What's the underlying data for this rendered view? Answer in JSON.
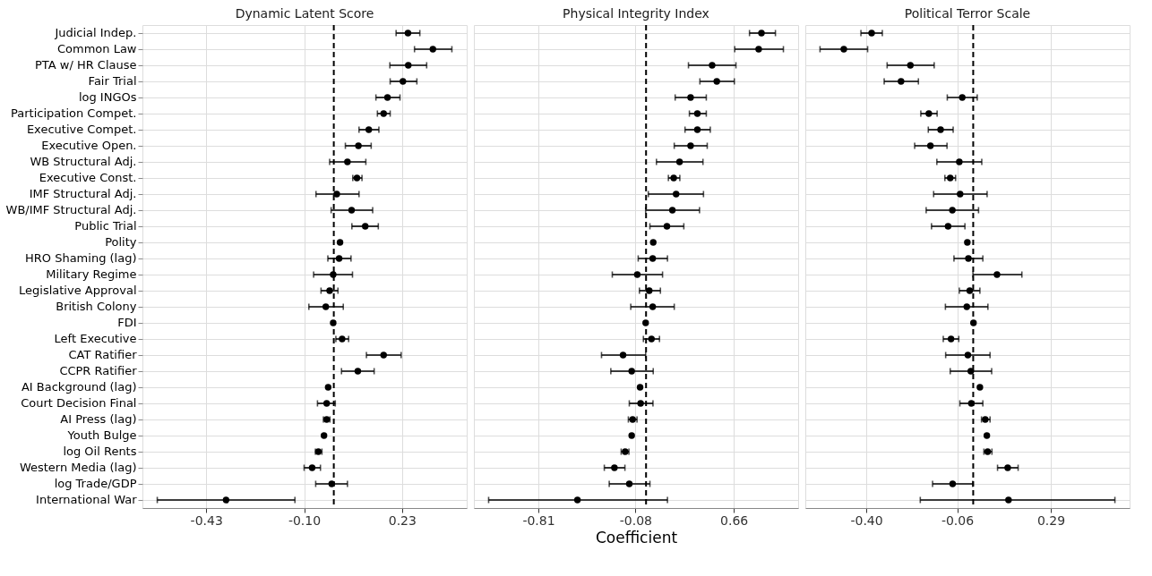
{
  "chart_data": [
    {
      "type": "scatter",
      "orientation": "horizontal",
      "title": "Dynamic Latent Score",
      "marker": "circle",
      "grid": true,
      "categories": [
        "Judicial Indep.",
        "Common Law",
        "PTA w/ HR Clause",
        "Fair Trial",
        "log INGOs",
        "Participation Compet.",
        "Executive Compet.",
        "Executive Open.",
        "WB Structural Adj.",
        "Executive Const.",
        "IMF Structural Adj.",
        "WB/IMF Structural Adj.",
        "Public Trial",
        "Polity",
        "HRO Shaming (lag)",
        "Military Regime",
        "Legislative Approval",
        "British Colony",
        "FDI",
        "Left Executive",
        "CAT Ratifier",
        "CCPR Ratifier",
        "AI Background (lag)",
        "Court Decision Final",
        "AI Press (lag)",
        "Youth Bulge",
        "log Oil Rents",
        "Western Media (lag)",
        "log Trade/GDP",
        "International War"
      ],
      "series": [
        {
          "color": "#000000",
          "values": [
            0.25,
            0.334,
            0.251,
            0.233,
            0.181,
            0.168,
            0.118,
            0.083,
            0.046,
            0.078,
            0.01,
            0.06,
            0.106,
            0.021,
            0.018,
            -0.002,
            -0.014,
            -0.027,
            -0.002,
            0.028,
            0.168,
            0.081,
            -0.019,
            -0.024,
            -0.024,
            -0.033,
            -0.052,
            -0.073,
            -0.007,
            -0.363
          ],
          "errors": [
            [
              0.21,
              0.29
            ],
            [
              0.272,
              0.398
            ],
            [
              0.189,
              0.313
            ],
            [
              0.19,
              0.28
            ],
            [
              0.142,
              0.223
            ],
            [
              0.147,
              0.19
            ],
            [
              0.085,
              0.152
            ],
            [
              0.039,
              0.126
            ],
            [
              -0.014,
              0.108
            ],
            [
              0.064,
              0.095
            ],
            [
              -0.06,
              0.085
            ],
            [
              -0.009,
              0.131
            ],
            [
              0.061,
              0.15
            ],
            null,
            [
              -0.02,
              0.058
            ],
            [
              -0.068,
              0.063
            ],
            [
              -0.043,
              0.014
            ],
            [
              -0.084,
              0.032
            ],
            null,
            [
              0.007,
              0.05
            ],
            [
              0.11,
              0.227
            ],
            [
              0.026,
              0.136
            ],
            null,
            [
              -0.055,
              0.005
            ],
            [
              -0.035,
              -0.013
            ],
            null,
            [
              -0.062,
              -0.04
            ],
            [
              -0.1,
              -0.045
            ],
            [
              -0.061,
              0.046
            ],
            [
              -0.595,
              -0.131
            ]
          ]
        }
      ],
      "xlim": [
        -0.645,
        0.448
      ],
      "xticks": [
        -0.43,
        {
          "value": -0.1,
          "label": "-0.10"
        },
        0.23
      ],
      "ref_lines": [
        {
          "axis": "x",
          "value": 0,
          "color": "#000000",
          "line_style": "dashed"
        }
      ]
    },
    {
      "type": "scatter",
      "orientation": "horizontal",
      "title": "Physical Integrity Index",
      "xlabel": "Coefficient",
      "marker": "circle",
      "grid": true,
      "tick_labels": "x",
      "categories": [
        null,
        null,
        null,
        null,
        null,
        null,
        null,
        null,
        null,
        null,
        null,
        null,
        null,
        null,
        null,
        null,
        null,
        null,
        null,
        null,
        null,
        null,
        null,
        null,
        null,
        null,
        null,
        null,
        null,
        null
      ],
      "series": [
        {
          "color": "#000000",
          "values": [
            0.868,
            0.847,
            0.497,
            0.532,
            0.335,
            0.386,
            0.386,
            0.335,
            0.252,
            0.208,
            0.226,
            0.198,
            0.157,
            0.054,
            0.05,
            -0.066,
            0.024,
            0.05,
            -0.003,
            0.041,
            -0.173,
            -0.108,
            -0.045,
            -0.041,
            -0.101,
            -0.108,
            -0.157,
            -0.238,
            -0.126,
            -0.516
          ],
          "errors": [
            [
              0.778,
              0.973
            ],
            [
              0.667,
              1.033
            ],
            [
              0.319,
              0.676
            ],
            [
              0.405,
              0.664
            ],
            [
              0.219,
              0.453
            ],
            [
              0.326,
              0.453
            ],
            [
              0.293,
              0.483
            ],
            [
              0.212,
              0.46
            ],
            [
              0.078,
              0.428
            ],
            [
              0.168,
              0.254
            ],
            [
              0.017,
              0.432
            ],
            [
              -0.003,
              0.402
            ],
            [
              0.029,
              0.284
            ],
            null,
            [
              -0.059,
              0.161
            ],
            [
              -0.254,
              0.124
            ],
            [
              -0.05,
              0.108
            ],
            [
              -0.115,
              0.212
            ],
            null,
            [
              -0.02,
              0.101
            ],
            [
              -0.335,
              -0.003
            ],
            [
              -0.265,
              0.054
            ],
            null,
            [
              -0.126,
              0.052
            ],
            [
              -0.133,
              -0.068
            ],
            null,
            [
              -0.187,
              -0.129
            ],
            [
              -0.314,
              -0.159
            ],
            [
              -0.277,
              0.029
            ],
            [
              -1.184,
              0.161
            ]
          ]
        }
      ],
      "xlim": [
        -1.295,
        1.144
      ],
      "xticks": [
        -0.81,
        -0.08,
        0.66
      ],
      "ref_lines": [
        {
          "axis": "x",
          "value": 0,
          "color": "#000000",
          "line_style": "dashed"
        }
      ]
    },
    {
      "type": "scatter",
      "orientation": "horizontal",
      "title": "Political Terror Scale",
      "marker": "circle",
      "grid": true,
      "tick_labels": "x",
      "categories": [
        null,
        null,
        null,
        null,
        null,
        null,
        null,
        null,
        null,
        null,
        null,
        null,
        null,
        null,
        null,
        null,
        null,
        null,
        null,
        null,
        null,
        null,
        null,
        null,
        null,
        null,
        null,
        null,
        null,
        null
      ],
      "series": [
        {
          "color": "#000000",
          "values": [
            -0.38,
            -0.484,
            -0.235,
            -0.27,
            -0.041,
            -0.166,
            -0.122,
            -0.16,
            -0.052,
            -0.086,
            -0.049,
            -0.078,
            -0.094,
            -0.022,
            -0.018,
            0.089,
            -0.013,
            -0.024,
            0.001,
            -0.083,
            -0.02,
            -0.009,
            0.025,
            -0.007,
            0.045,
            0.051,
            0.054,
            0.129,
            -0.077,
            0.132
          ],
          "errors": [
            [
              -0.42,
              -0.34
            ],
            [
              -0.573,
              -0.395
            ],
            [
              -0.322,
              -0.146
            ],
            [
              -0.333,
              -0.205
            ],
            [
              -0.097,
              0.015
            ],
            [
              -0.196,
              -0.135
            ],
            [
              -0.168,
              -0.075
            ],
            [
              -0.219,
              -0.098
            ],
            [
              -0.136,
              0.032
            ],
            [
              -0.106,
              -0.066
            ],
            [
              -0.148,
              0.052
            ],
            [
              -0.176,
              0.02
            ],
            [
              -0.156,
              -0.031
            ],
            null,
            [
              -0.072,
              0.036
            ],
            [
              -0.001,
              0.182
            ],
            [
              -0.052,
              0.025
            ],
            [
              -0.104,
              0.055
            ],
            null,
            [
              -0.112,
              -0.054
            ],
            [
              -0.103,
              0.063
            ],
            [
              -0.086,
              0.069
            ],
            null,
            [
              -0.05,
              0.036
            ],
            [
              0.031,
              0.063
            ],
            null,
            [
              0.04,
              0.07
            ],
            [
              0.091,
              0.168
            ],
            [
              -0.152,
              -0.002
            ],
            [
              -0.198,
              0.53
            ]
          ]
        }
      ],
      "xlim": [
        -0.628,
        0.585
      ],
      "xticks": [
        {
          "value": -0.4,
          "label": "-0.40"
        },
        -0.06,
        0.29
      ],
      "ref_lines": [
        {
          "axis": "x",
          "value": 0,
          "color": "#000000",
          "line_style": "dashed"
        }
      ]
    }
  ]
}
